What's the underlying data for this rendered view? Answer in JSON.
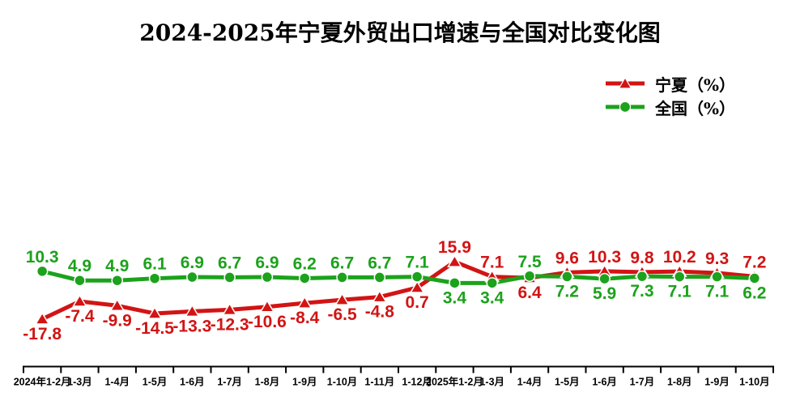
{
  "chart": {
    "title": "2024-2025年宁夏外贸出口增速与全国对比变化图"
  },
  "chart_data": {
    "type": "line",
    "title": "2024-2025年宁夏外贸出口增速与全国对比变化图",
    "categories": [
      "2024年1-2月",
      "1-3月",
      "1-4月",
      "1-5月",
      "1-6月",
      "1-7月",
      "1-8月",
      "1-9月",
      "1-10月",
      "1-11月",
      "1-12月",
      "2025年1-2月",
      "1-3月",
      "1-4月",
      "1-5月",
      "1-6月",
      "1-7月",
      "1-8月",
      "1-9月",
      "1-10月"
    ],
    "series": [
      {
        "name": "宁夏（%）",
        "color": "#d21414",
        "marker": "triangle",
        "values": [
          -17.8,
          -7.4,
          -9.9,
          -14.5,
          -13.3,
          -12.3,
          -10.6,
          -8.4,
          -6.5,
          -4.8,
          0.7,
          15.9,
          7.1,
          6.4,
          9.6,
          10.3,
          9.8,
          10.2,
          9.3,
          7.2
        ]
      },
      {
        "name": "全国（%）",
        "color": "#1ca21c",
        "marker": "circle",
        "values": [
          10.3,
          4.9,
          4.9,
          6.1,
          6.9,
          6.7,
          6.9,
          6.2,
          6.7,
          6.7,
          7.1,
          3.4,
          3.4,
          7.5,
          7.2,
          5.9,
          7.3,
          7.1,
          7.1,
          6.2
        ]
      }
    ],
    "xlabel": "",
    "ylabel": "",
    "y_axis_hidden": true,
    "grid": false,
    "data_labels": true,
    "legend_position": "top-right",
    "axis_color": "#000000",
    "background_color": "#ffffff"
  }
}
